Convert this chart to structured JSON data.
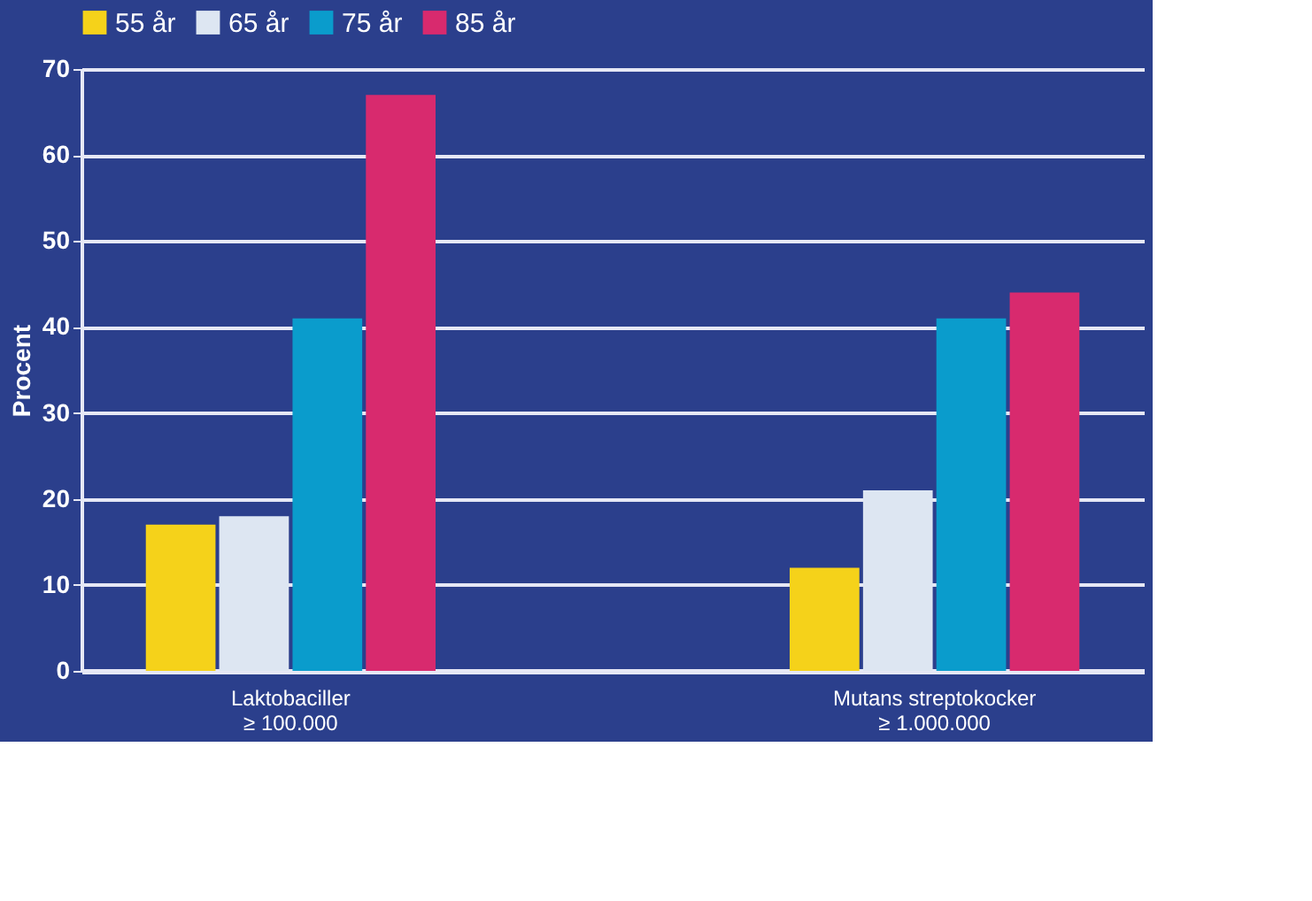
{
  "chart_data": {
    "type": "bar",
    "ylabel": "Procent",
    "categories": [
      "Laktobaciller\n≥ 100.000",
      "Mutans streptokocker\n≥ 1.000.000"
    ],
    "series": [
      {
        "name": "55 år",
        "color": "#f5d21a",
        "values": [
          17,
          12
        ]
      },
      {
        "name": "65 år",
        "color": "#dde6f2",
        "values": [
          18,
          21
        ]
      },
      {
        "name": "75 år",
        "color": "#0a9ccc",
        "values": [
          41,
          41
        ]
      },
      {
        "name": "85 år",
        "color": "#d82a6e",
        "values": [
          67,
          44
        ]
      }
    ],
    "ylim": [
      0,
      70
    ],
    "yticks": [
      0,
      10,
      20,
      30,
      40,
      50,
      60,
      70
    ],
    "grid": "y",
    "legend": "top"
  }
}
